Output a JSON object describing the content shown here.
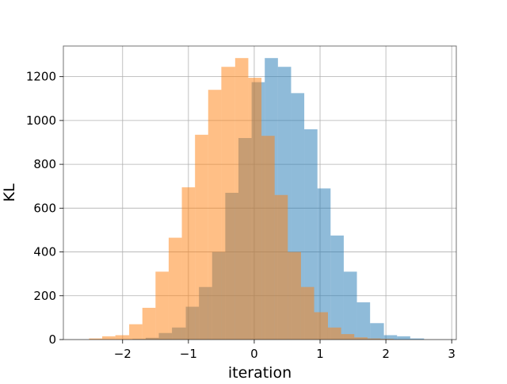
{
  "chart_data": {
    "type": "bar",
    "title": "",
    "xlabel": "iteration",
    "ylabel": "KL",
    "xlim": [
      -2.9,
      3.07
    ],
    "ylim": [
      0,
      1340
    ],
    "grid": true,
    "x_ticks": [
      -2,
      -1,
      0,
      1,
      2,
      3
    ],
    "x_tick_labels": [
      "−2",
      "−1",
      "0",
      "1",
      "2",
      "3"
    ],
    "y_ticks": [
      0,
      200,
      400,
      600,
      800,
      1000,
      1200
    ],
    "y_tick_labels": [
      "0",
      "200",
      "400",
      "600",
      "800",
      "1000",
      "1200"
    ],
    "series": [
      {
        "color": "#1f77b4",
        "opacity": 0.5,
        "bin_edges": [
          -1.85,
          -1.65,
          -1.45,
          -1.25,
          -1.04,
          -0.84,
          -0.64,
          -0.44,
          -0.24,
          -0.04,
          0.16,
          0.36,
          0.56,
          0.76,
          0.96,
          1.16,
          1.36,
          1.56,
          1.76,
          1.97,
          2.17,
          2.37,
          2.58
        ],
        "counts": [
          3,
          8,
          30,
          55,
          150,
          240,
          400,
          670,
          920,
          1175,
          1285,
          1245,
          1125,
          960,
          690,
          475,
          310,
          170,
          75,
          20,
          15,
          5
        ]
      },
      {
        "color": "#ff7f0e",
        "opacity": 0.5,
        "bin_edges": [
          -2.51,
          -2.31,
          -2.11,
          -1.9,
          -1.7,
          -1.5,
          -1.3,
          -1.1,
          -0.9,
          -0.7,
          -0.5,
          -0.29,
          -0.09,
          0.11,
          0.31,
          0.51,
          0.71,
          0.91,
          1.12,
          1.32,
          1.52,
          1.72,
          1.92,
          2.12
        ],
        "counts": [
          5,
          15,
          20,
          70,
          145,
          310,
          465,
          695,
          935,
          1140,
          1245,
          1285,
          1195,
          930,
          660,
          400,
          240,
          125,
          55,
          25,
          10,
          5,
          3
        ]
      }
    ]
  }
}
